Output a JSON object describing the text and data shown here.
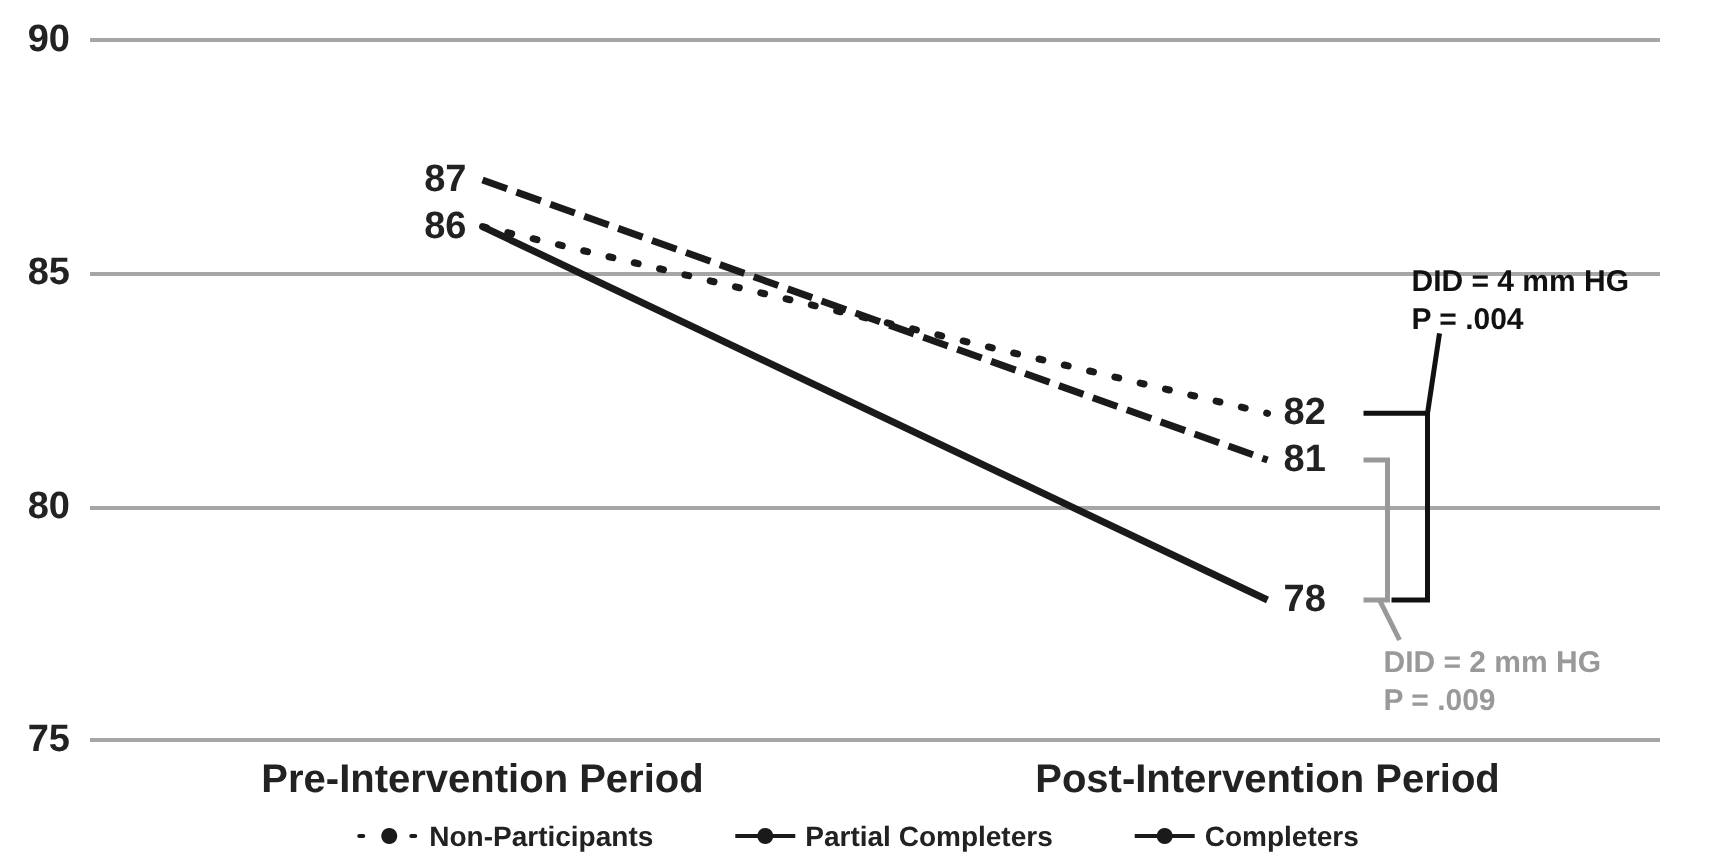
{
  "chart_data": {
    "type": "line",
    "categories": [
      "Pre-Intervention Period",
      "Post-Intervention Period"
    ],
    "series": [
      {
        "name": "Non-Participants",
        "color": "#1a1a1a",
        "line_style": "dotted",
        "values": [
          86,
          82
        ],
        "value_labels": [
          null,
          "82"
        ]
      },
      {
        "name": "Partial Completers",
        "color": "#1a1a1a",
        "line_style": "dashed",
        "values": [
          87,
          81
        ],
        "value_labels": [
          "87",
          "81"
        ]
      },
      {
        "name": "Completers",
        "color": "#1a1a1a",
        "line_style": "solid",
        "values": [
          86,
          78
        ],
        "value_labels": [
          "86",
          "78"
        ]
      }
    ],
    "ylim": [
      75,
      90
    ],
    "yticks": [
      75,
      80,
      85,
      90
    ],
    "grid": "y",
    "legend": "bottom",
    "marker": "none",
    "annotations": [
      "DID = 4 mm HG\nP = .004",
      "DID = 2 mm HG\nP = .009"
    ]
  }
}
